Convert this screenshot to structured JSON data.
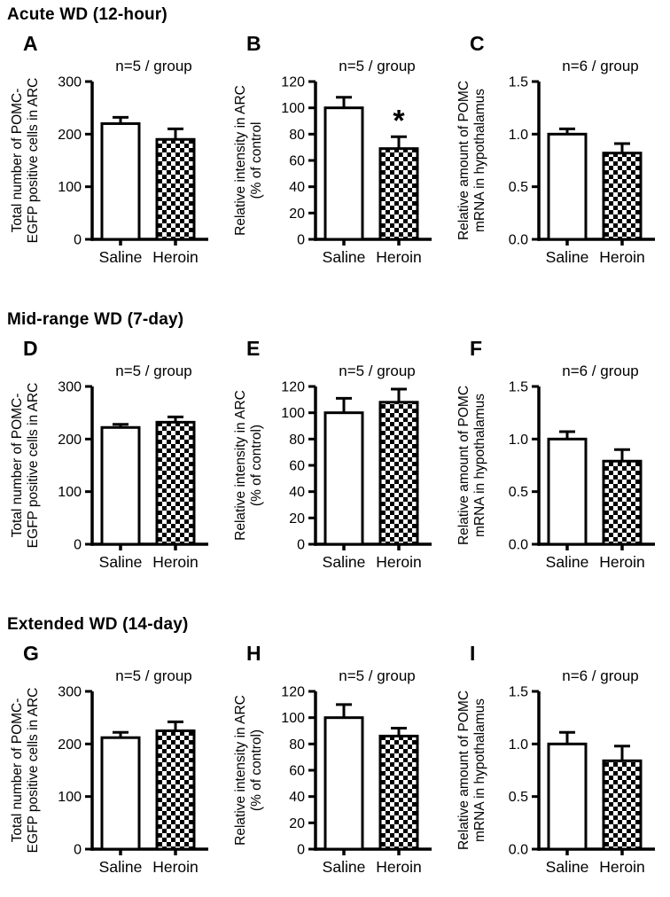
{
  "colors": {
    "ink": "#000000",
    "background": "#ffffff"
  },
  "sections": [
    {
      "title": "Acute WD (12-hour)"
    },
    {
      "title": "Mid-range WD (7-day)"
    },
    {
      "title": "Extended WD (14-day)"
    }
  ],
  "chart_data": [
    {
      "type": "bar",
      "letter": "A",
      "n_label": "n=5 / group",
      "ylabel_lines": [
        "Total number of POMC-",
        "EGFP positive cells in ARC"
      ],
      "categories": [
        "Saline",
        "Heroin"
      ],
      "values": [
        220,
        190
      ],
      "errors": [
        12,
        20
      ],
      "sig": [
        "",
        ""
      ],
      "fills": [
        "white",
        "checker"
      ],
      "ylim": [
        0,
        300
      ],
      "yticks": [
        0,
        100,
        200,
        300
      ],
      "ytick_labels": [
        "0",
        "100",
        "200",
        "300"
      ]
    },
    {
      "type": "bar",
      "letter": "B",
      "n_label": "n=5 / group",
      "ylabel_lines": [
        "Relative intensity in ARC",
        "(% of control"
      ],
      "categories": [
        "Saline",
        "Heroin"
      ],
      "values": [
        100,
        69
      ],
      "errors": [
        8,
        9
      ],
      "sig": [
        "",
        "*"
      ],
      "fills": [
        "white",
        "checker"
      ],
      "ylim": [
        0,
        120
      ],
      "yticks": [
        0,
        20,
        40,
        60,
        80,
        100,
        120
      ],
      "ytick_labels": [
        "0",
        "20",
        "40",
        "60",
        "80",
        "100",
        "120"
      ]
    },
    {
      "type": "bar",
      "letter": "C",
      "n_label": "n=6 / group",
      "ylabel_lines": [
        "Relative amount of POMC",
        "mRNA in hypothalamus"
      ],
      "categories": [
        "Saline",
        "Heroin"
      ],
      "values": [
        1.0,
        0.82
      ],
      "errors": [
        0.05,
        0.09
      ],
      "sig": [
        "",
        ""
      ],
      "fills": [
        "white",
        "checker"
      ],
      "ylim": [
        0,
        1.5
      ],
      "yticks": [
        0,
        0.5,
        1.0,
        1.5
      ],
      "ytick_labels": [
        "0.0",
        "0.5",
        "1.0",
        "1.5"
      ]
    },
    {
      "type": "bar",
      "letter": "D",
      "n_label": "n=5 / group",
      "ylabel_lines": [
        "Total number of POMC-",
        "EGFP positive cells in ARC"
      ],
      "categories": [
        "Saline",
        "Heroin"
      ],
      "values": [
        222,
        232
      ],
      "errors": [
        6,
        10
      ],
      "sig": [
        "",
        ""
      ],
      "fills": [
        "white",
        "checker"
      ],
      "ylim": [
        0,
        300
      ],
      "yticks": [
        0,
        100,
        200,
        300
      ],
      "ytick_labels": [
        "0",
        "100",
        "200",
        "300"
      ]
    },
    {
      "type": "bar",
      "letter": "E",
      "n_label": "n=5 / group",
      "ylabel_lines": [
        "Relative intensity in ARC",
        "(% of control)"
      ],
      "categories": [
        "Saline",
        "Heroin"
      ],
      "values": [
        100,
        108
      ],
      "errors": [
        11,
        10
      ],
      "sig": [
        "",
        ""
      ],
      "fills": [
        "white",
        "checker"
      ],
      "ylim": [
        0,
        120
      ],
      "yticks": [
        0,
        20,
        40,
        60,
        80,
        100,
        120
      ],
      "ytick_labels": [
        "0",
        "20",
        "40",
        "60",
        "80",
        "100",
        "120"
      ]
    },
    {
      "type": "bar",
      "letter": "F",
      "n_label": "n=6 / group",
      "ylabel_lines": [
        "Relative amount of POMC",
        "mRNA in hypothalamus"
      ],
      "categories": [
        "Saline",
        "Heroin"
      ],
      "values": [
        1.0,
        0.79
      ],
      "errors": [
        0.07,
        0.11
      ],
      "sig": [
        "",
        ""
      ],
      "fills": [
        "white",
        "checker"
      ],
      "ylim": [
        0,
        1.5
      ],
      "yticks": [
        0,
        0.5,
        1.0,
        1.5
      ],
      "ytick_labels": [
        "0.0",
        "0.5",
        "1.0",
        "1.5"
      ]
    },
    {
      "type": "bar",
      "letter": "G",
      "n_label": "n=5 / group",
      "ylabel_lines": [
        "Total number of POMC-",
        "EGFP positive cells in ARC"
      ],
      "categories": [
        "Saline",
        "Heroin"
      ],
      "values": [
        212,
        225
      ],
      "errors": [
        10,
        17
      ],
      "sig": [
        "",
        ""
      ],
      "fills": [
        "white",
        "checker"
      ],
      "ylim": [
        0,
        300
      ],
      "yticks": [
        0,
        100,
        200,
        300
      ],
      "ytick_labels": [
        "0",
        "100",
        "200",
        "300"
      ]
    },
    {
      "type": "bar",
      "letter": "H",
      "n_label": "n=5 / group",
      "ylabel_lines": [
        "Relative intensity in ARC",
        "(% of control)"
      ],
      "categories": [
        "Saline",
        "Heroin"
      ],
      "values": [
        100,
        86
      ],
      "errors": [
        10,
        6
      ],
      "sig": [
        "",
        ""
      ],
      "fills": [
        "white",
        "checker"
      ],
      "ylim": [
        0,
        120
      ],
      "yticks": [
        0,
        20,
        40,
        60,
        80,
        100,
        120
      ],
      "ytick_labels": [
        "0",
        "20",
        "40",
        "60",
        "80",
        "100",
        "120"
      ]
    },
    {
      "type": "bar",
      "letter": "I",
      "n_label": "n=6 / group",
      "ylabel_lines": [
        "Relative amount of POMC",
        "mRNA in hypothalamus"
      ],
      "categories": [
        "Saline",
        "Heroin"
      ],
      "values": [
        1.0,
        0.84
      ],
      "errors": [
        0.11,
        0.14
      ],
      "sig": [
        "",
        ""
      ],
      "fills": [
        "white",
        "checker"
      ],
      "ylim": [
        0,
        1.5
      ],
      "yticks": [
        0,
        0.5,
        1.0,
        1.5
      ],
      "ytick_labels": [
        "0.0",
        "0.5",
        "1.0",
        "1.5"
      ]
    }
  ]
}
